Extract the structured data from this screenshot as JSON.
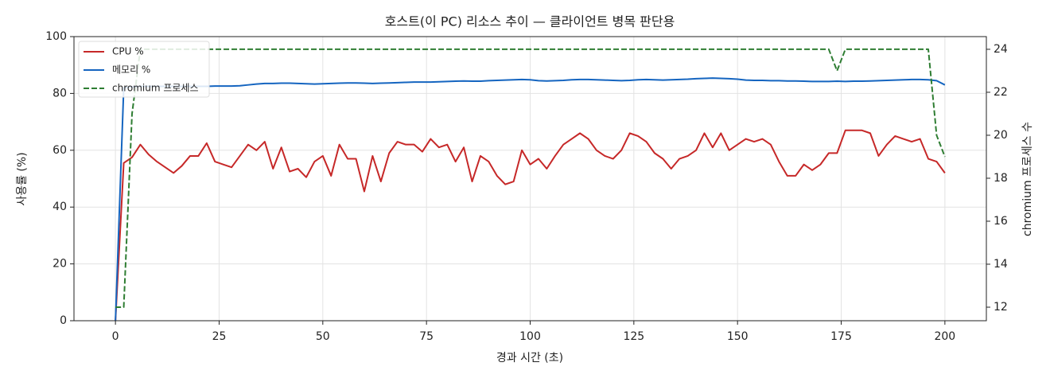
{
  "chart_data": {
    "type": "line",
    "title": "호스트(이 PC) 리소스 추이 — 클라이언트 병목 판단용",
    "xlabel": "경과 시간 (초)",
    "ylabel": "사용률 (%)",
    "y2label": "chromium 프로세스 수",
    "x": [
      0,
      2,
      4,
      6,
      8,
      10,
      12,
      14,
      16,
      18,
      20,
      22,
      24,
      26,
      28,
      30,
      32,
      34,
      36,
      38,
      40,
      42,
      44,
      46,
      48,
      50,
      52,
      54,
      56,
      58,
      60,
      62,
      64,
      66,
      68,
      70,
      72,
      74,
      76,
      78,
      80,
      82,
      84,
      86,
      88,
      90,
      92,
      94,
      96,
      98,
      100,
      102,
      104,
      106,
      108,
      110,
      112,
      114,
      116,
      118,
      120,
      122,
      124,
      126,
      128,
      130,
      132,
      134,
      136,
      138,
      140,
      142,
      144,
      146,
      148,
      150,
      152,
      154,
      156,
      158,
      160,
      162,
      164,
      166,
      168,
      170,
      172,
      174,
      176,
      178,
      180,
      182,
      184,
      186,
      188,
      190,
      192,
      194,
      196,
      198,
      200
    ],
    "series": [
      {
        "name": "CPU %",
        "color": "#c62828",
        "dash": false,
        "values": [
          0,
          55.5,
          57.5,
          62,
          58.5,
          56,
          54,
          52,
          54.5,
          58,
          58,
          62.5,
          56,
          55,
          54,
          58,
          62,
          60,
          63,
          53.5,
          61,
          52.5,
          53.5,
          50.5,
          56,
          58,
          51,
          62,
          57,
          57,
          45.5,
          58,
          49,
          59,
          63,
          62,
          62,
          59.5,
          64,
          61,
          62,
          56,
          61,
          49,
          58,
          56,
          51,
          48,
          49,
          60,
          55,
          57,
          53.5,
          58,
          62,
          64,
          66,
          64,
          60,
          58,
          57,
          60,
          66,
          65,
          63,
          59,
          57,
          53.5,
          57,
          58,
          60,
          66,
          61,
          66,
          60,
          62,
          64,
          63,
          64,
          62,
          56,
          51,
          51,
          55,
          53,
          55,
          59,
          59,
          67,
          67,
          67,
          66,
          58,
          62,
          65,
          64,
          63,
          64,
          57,
          56,
          52
        ]
      },
      {
        "name": "메모리 %",
        "color": "#1565c0",
        "dash": false,
        "values": [
          0,
          82,
          82.3,
          82.5,
          82.5,
          82.5,
          82.5,
          82.5,
          82.5,
          82.5,
          82.5,
          82.5,
          82.6,
          82.6,
          82.6,
          82.7,
          83,
          83.3,
          83.5,
          83.5,
          83.6,
          83.6,
          83.5,
          83.4,
          83.3,
          83.4,
          83.5,
          83.6,
          83.7,
          83.7,
          83.6,
          83.5,
          83.6,
          83.7,
          83.8,
          83.9,
          84,
          84,
          84,
          84.1,
          84.2,
          84.3,
          84.4,
          84.3,
          84.3,
          84.5,
          84.6,
          84.7,
          84.8,
          84.9,
          84.8,
          84.5,
          84.4,
          84.5,
          84.6,
          84.8,
          84.9,
          84.9,
          84.8,
          84.7,
          84.6,
          84.5,
          84.6,
          84.8,
          84.9,
          84.8,
          84.7,
          84.8,
          84.9,
          85,
          85.2,
          85.3,
          85.4,
          85.3,
          85.2,
          85,
          84.7,
          84.6,
          84.6,
          84.5,
          84.5,
          84.4,
          84.4,
          84.3,
          84.2,
          84.2,
          84.2,
          84.3,
          84.2,
          84.3,
          84.3,
          84.4,
          84.5,
          84.6,
          84.7,
          84.8,
          84.9,
          84.9,
          84.8,
          84.5,
          83
        ]
      },
      {
        "name": "chromium 프로세스",
        "color": "#2e7d32",
        "dash": true,
        "axis": "y2",
        "values": [
          12,
          12,
          21,
          24,
          24,
          24,
          24,
          24,
          24,
          24,
          24,
          24,
          24,
          24,
          24,
          24,
          24,
          24,
          24,
          24,
          24,
          24,
          24,
          24,
          24,
          24,
          24,
          24,
          24,
          24,
          24,
          24,
          24,
          24,
          24,
          24,
          24,
          24,
          24,
          24,
          24,
          24,
          24,
          24,
          24,
          24,
          24,
          24,
          24,
          24,
          24,
          24,
          24,
          24,
          24,
          24,
          24,
          24,
          24,
          24,
          24,
          24,
          24,
          24,
          24,
          24,
          24,
          24,
          24,
          24,
          24,
          24,
          24,
          24,
          24,
          24,
          24,
          24,
          24,
          24,
          24,
          24,
          24,
          24,
          24,
          24,
          24,
          23,
          24,
          24,
          24,
          24,
          24,
          24,
          24,
          24,
          24,
          24,
          24,
          20,
          19
        ]
      }
    ],
    "xlim": [
      -10,
      210
    ],
    "xticks": [
      0,
      25,
      50,
      75,
      100,
      125,
      150,
      175,
      200
    ],
    "ylim": [
      0,
      100
    ],
    "yticks": [
      0,
      20,
      40,
      60,
      80,
      100
    ],
    "y2lim": [
      11.37,
      24.59
    ],
    "y2ticks": [
      12,
      14,
      16,
      18,
      20,
      22,
      24
    ],
    "grid": true,
    "legend": "upper left"
  }
}
